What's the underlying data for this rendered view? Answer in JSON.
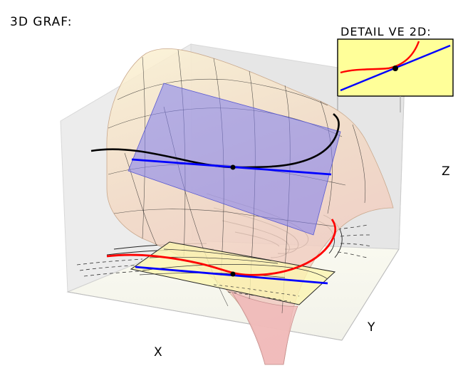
{
  "title": "3D GRAF:",
  "inset": {
    "title": "DETAIL VE 2D:"
  },
  "axes": {
    "x_label": "X",
    "y_label": "Y",
    "z_label": "Z"
  },
  "colors": {
    "surface_fill": "#f3dcc0",
    "tangent_plane": "#8080ee",
    "curve_section": "#000000",
    "tangent_line": "#0000ff",
    "level_curve": "#ff0000",
    "point": "#000000",
    "inset_background": "#ffff99"
  }
}
